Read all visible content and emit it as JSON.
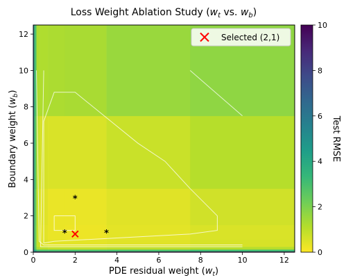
{
  "chart_data": {
    "type": "heatmap",
    "title": "Loss Weight Ablation Study (w_t vs. w_b)",
    "title_parts": {
      "prefix": "Loss Weight Ablation Study (",
      "var1": "w",
      "sub1": "t",
      "middle": " vs. ",
      "var2": "w",
      "sub2": "b",
      "suffix": ")"
    },
    "xlabel": "PDE residual weight (w_t)",
    "xlabel_parts": {
      "prefix": "PDE residual weight (",
      "var": "w",
      "sub": "t",
      "suffix": ")"
    },
    "ylabel": "Boundary weight (w_b)",
    "ylabel_parts": {
      "prefix": "Boundary weight (",
      "var": "w",
      "sub": "b",
      "suffix": ")"
    },
    "xlim": [
      0,
      12.5
    ],
    "ylim": [
      0,
      12.5
    ],
    "x_ticks": [
      0,
      2,
      4,
      6,
      8,
      10,
      12
    ],
    "y_ticks": [
      0,
      2,
      4,
      6,
      8,
      10,
      12
    ],
    "x_edges": [
      0,
      0.05,
      0.15,
      0.3,
      0.7,
      1.5,
      3.5,
      7.5,
      12.5
    ],
    "y_edges": [
      0,
      0.05,
      0.15,
      0.3,
      0.7,
      1.5,
      3.5,
      7.5,
      12.5
    ],
    "values": [
      [
        6.0,
        9.5,
        9.5,
        9.5,
        9.5,
        9.5,
        9.5,
        9.5
      ],
      [
        6.0,
        4.0,
        3.0,
        3.0,
        3.0,
        3.0,
        3.0,
        3.2
      ],
      [
        6.0,
        2.6,
        1.2,
        1.0,
        0.9,
        0.9,
        0.95,
        1.1
      ],
      [
        6.0,
        2.4,
        0.85,
        0.5,
        0.4,
        0.4,
        0.45,
        0.6
      ],
      [
        6.0,
        2.4,
        0.8,
        0.4,
        0.3,
        0.25,
        0.4,
        0.55
      ],
      [
        6.0,
        2.5,
        0.8,
        0.45,
        0.3,
        0.3,
        0.45,
        0.7
      ],
      [
        6.0,
        2.7,
        0.9,
        0.6,
        0.55,
        0.55,
        0.8,
        1.1
      ],
      [
        6.0,
        2.9,
        1.25,
        1.2,
        1.25,
        1.3,
        1.55,
        1.7
      ]
    ],
    "colorbar": {
      "label": "Test RMSE",
      "min": 0,
      "max": 10,
      "ticks": [
        0,
        2,
        4,
        6,
        8,
        10
      ]
    },
    "contour_lines": [
      [
        [
          0.15,
          10.0
        ],
        [
          0.28,
          0.6
        ],
        [
          0.5,
          0.4
        ],
        [
          7.5,
          0.4
        ],
        [
          10.0,
          0.4
        ]
      ],
      [
        [
          0.5,
          10.0
        ],
        [
          0.35,
          0.3
        ],
        [
          10.0,
          0.3
        ]
      ],
      [
        [
          0.5,
          0.5
        ],
        [
          0.5,
          7.2
        ],
        [
          1.0,
          8.8
        ],
        [
          2.0,
          8.8
        ],
        [
          5.0,
          6.0
        ],
        [
          6.3,
          5.0
        ],
        [
          7.5,
          3.5
        ],
        [
          8.8,
          2.0
        ],
        [
          8.8,
          1.2
        ],
        [
          7.5,
          1.0
        ],
        [
          1.0,
          0.6
        ],
        [
          0.5,
          0.5
        ]
      ],
      [
        [
          7.5,
          10.0
        ],
        [
          10.0,
          7.5
        ]
      ],
      [
        [
          1.0,
          2.0
        ],
        [
          2.0,
          2.0
        ],
        [
          2.0,
          1.2
        ],
        [
          1.0,
          1.2
        ],
        [
          1.0,
          2.0
        ]
      ]
    ],
    "star_markers": [
      {
        "x": 2.0,
        "y": 3.0
      },
      {
        "x": 1.5,
        "y": 1.1
      },
      {
        "x": 3.5,
        "y": 1.1
      }
    ],
    "selected_point": {
      "x": 2,
      "y": 1
    },
    "legend": {
      "position": "top-right",
      "label": "Selected (2,1)",
      "marker_color": "#ff0000"
    }
  }
}
